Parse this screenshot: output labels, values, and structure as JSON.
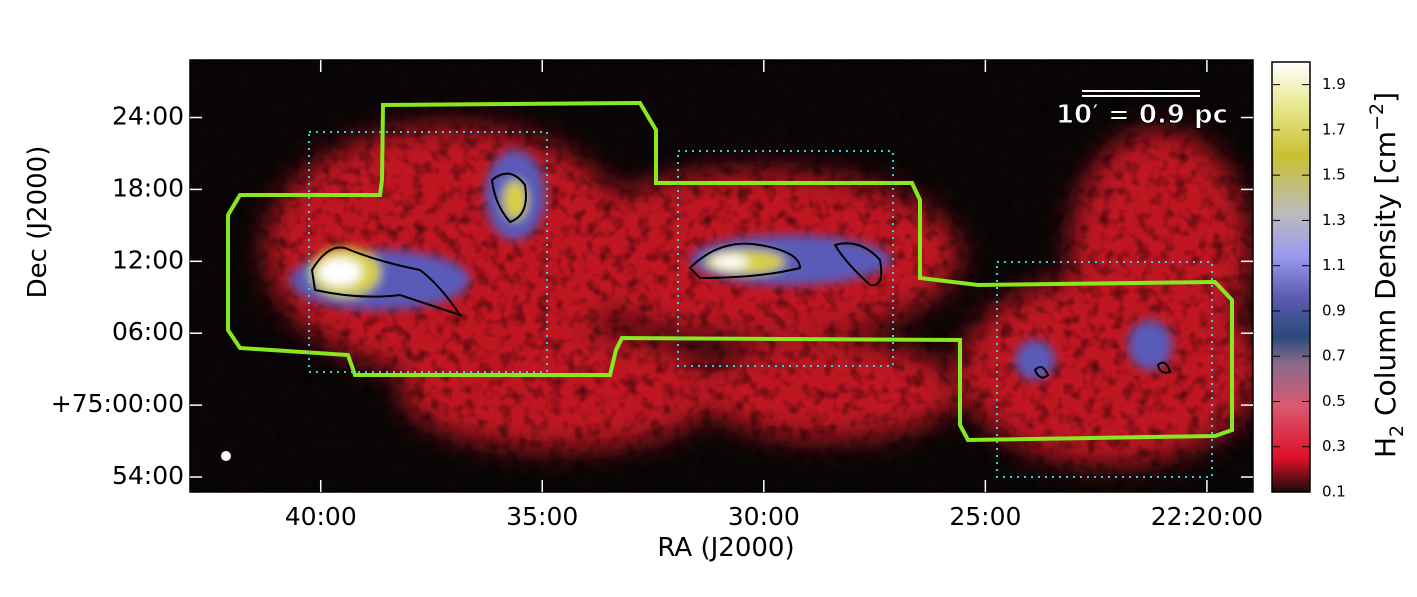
{
  "chart_data": {
    "type": "image",
    "xlabel": "RA (J2000)",
    "ylabel": "Dec (J2000)",
    "xlim": [
      42.95,
      18.96
    ],
    "xticks": [
      {
        "value": 40,
        "label": "40:00"
      },
      {
        "value": 35,
        "label": "35:00"
      },
      {
        "value": 30,
        "label": "30:00"
      },
      {
        "value": 25,
        "label": "25:00"
      },
      {
        "value": 20,
        "label": "22:20:00"
      }
    ],
    "ylim": [
      -7.25,
      28.8
    ],
    "yticks": [
      {
        "value": 24,
        "label": "24:00"
      },
      {
        "value": 18,
        "label": "18:00"
      },
      {
        "value": 12,
        "label": "12:00"
      },
      {
        "value": 6,
        "label": "06:00"
      },
      {
        "value": 0,
        "label": "+75:00:00"
      },
      {
        "value": -6,
        "label": "54:00"
      }
    ],
    "scale_bar": "10′ = 0.9 pc",
    "colorbar": {
      "label_parts": [
        "H",
        "2",
        " Column Density [cm",
        "−2",
        "]"
      ],
      "lim": [
        0.1,
        2.0
      ],
      "ticks": [
        0.1,
        0.3,
        0.5,
        0.7,
        0.9,
        1.1,
        1.3,
        1.5,
        1.7,
        1.9
      ]
    }
  }
}
